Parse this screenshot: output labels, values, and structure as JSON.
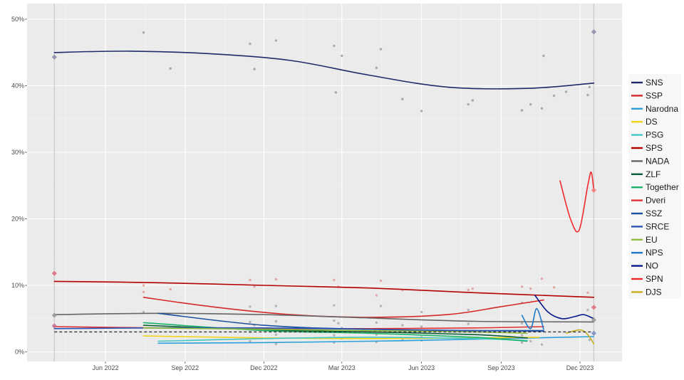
{
  "chart_data": {
    "type": "line",
    "title": "",
    "xlabel": "",
    "ylabel": "",
    "ylim": [
      0,
      50
    ],
    "xlim": [
      "2022-04-03",
      "2024-01-30"
    ],
    "grid": true,
    "legend_position": "right",
    "y_ticks": [
      0,
      10,
      20,
      30,
      40,
      50
    ],
    "y_tick_labels": [
      "0%",
      "10%",
      "20%",
      "30%",
      "40%",
      "50%"
    ],
    "x_ticks": [
      "2022-06-01",
      "2022-09-01",
      "2022-12-01",
      "2023-03-01",
      "2023-06-01",
      "2023-09-01",
      "2023-12-01"
    ],
    "x_tick_labels": [
      "Jun 2022",
      "Sep 2022",
      "Dec 2022",
      "Mar 2023",
      "Jun 2023",
      "Sep 2023",
      "Dec 2023"
    ],
    "election_dates": [
      "2022-04-03",
      "2023-12-17"
    ],
    "threshold": {
      "value": 3,
      "style": "dashed"
    },
    "series": [
      {
        "name": "SNS",
        "color": "#1f2a6b",
        "x": [
          "2022-04-03",
          "2022-07-01",
          "2022-10-01",
          "2023-01-01",
          "2023-04-01",
          "2023-07-01",
          "2023-10-01",
          "2023-12-17"
        ],
        "values": [
          45.0,
          45.2,
          44.8,
          43.8,
          41.6,
          39.8,
          39.6,
          40.4
        ]
      },
      {
        "name": "SSP",
        "color": "#d62828",
        "x": [
          "2022-07-15",
          "2022-10-01",
          "2023-01-01",
          "2023-04-01",
          "2023-07-01",
          "2023-09-01",
          "2023-10-20"
        ],
        "values": [
          8.2,
          6.8,
          5.6,
          5.2,
          5.6,
          6.8,
          7.8
        ]
      },
      {
        "name": "Narodna",
        "color": "#2b9fd9",
        "x": [
          "2022-08-01",
          "2022-12-01",
          "2023-04-01",
          "2023-08-01",
          "2023-12-17"
        ],
        "values": [
          1.3,
          1.4,
          1.6,
          1.9,
          2.3
        ]
      },
      {
        "name": "DS",
        "color": "#f2d41a",
        "x": [
          "2022-07-15",
          "2022-12-01",
          "2023-04-01",
          "2023-08-01",
          "2023-10-15"
        ],
        "values": [
          2.4,
          2.1,
          2.0,
          2.1,
          2.2
        ]
      },
      {
        "name": "PSG",
        "color": "#43c6c6",
        "x": [
          "2022-08-01",
          "2022-12-01",
          "2023-04-01",
          "2023-08-01",
          "2023-10-01"
        ],
        "values": [
          1.6,
          2.0,
          2.2,
          2.0,
          1.7
        ]
      },
      {
        "name": "SPS",
        "color": "#b30000",
        "x": [
          "2022-04-03",
          "2022-08-01",
          "2022-12-01",
          "2023-04-01",
          "2023-08-01",
          "2023-12-17"
        ],
        "values": [
          10.6,
          10.4,
          10.0,
          9.6,
          8.9,
          8.2
        ]
      },
      {
        "name": "NADA",
        "color": "#666666",
        "x": [
          "2022-04-03",
          "2022-08-01",
          "2022-12-01",
          "2023-04-01",
          "2023-08-01",
          "2023-12-17"
        ],
        "values": [
          5.6,
          5.8,
          5.6,
          5.1,
          4.6,
          4.5
        ]
      },
      {
        "name": "ZLF",
        "color": "#0b5e3a",
        "x": [
          "2022-07-15",
          "2022-12-01",
          "2023-04-01",
          "2023-08-01",
          "2023-10-01"
        ],
        "values": [
          4.0,
          3.3,
          3.0,
          2.6,
          2.1
        ]
      },
      {
        "name": "Together",
        "color": "#1db36a",
        "x": [
          "2022-07-15",
          "2022-12-01",
          "2023-04-01",
          "2023-08-01",
          "2023-10-01"
        ],
        "values": [
          4.4,
          3.2,
          2.8,
          2.2,
          1.6
        ]
      },
      {
        "name": "Dveri",
        "color": "#e03030",
        "x": [
          "2022-04-03",
          "2022-08-01",
          "2022-12-01",
          "2023-04-01",
          "2023-08-01",
          "2023-10-20"
        ],
        "values": [
          3.8,
          3.6,
          3.5,
          3.5,
          3.6,
          3.8
        ]
      },
      {
        "name": "SSZ",
        "color": "#1a4f9c",
        "x": [
          "2022-08-01",
          "2022-12-01",
          "2023-04-01",
          "2023-08-01",
          "2023-10-20"
        ],
        "values": [
          5.8,
          4.0,
          3.4,
          3.2,
          3.2
        ]
      },
      {
        "name": "SRCE",
        "color": "#2a55b8",
        "x": [
          "2022-04-03",
          "2022-08-01",
          "2022-12-01",
          "2023-04-01",
          "2023-08-01",
          "2023-10-20"
        ],
        "values": [
          3.5,
          3.6,
          3.6,
          3.4,
          3.2,
          3.1
        ]
      },
      {
        "name": "EU",
        "color": "#8fbf3a",
        "x": [
          "2022-07-15",
          "2022-12-01",
          "2023-04-01",
          "2023-08-01",
          "2023-10-01"
        ],
        "values": [
          3.6,
          3.4,
          3.2,
          3.0,
          2.8
        ]
      },
      {
        "name": "NPS",
        "color": "#1f78c8",
        "x": [
          "2023-09-25",
          "2023-10-05",
          "2023-10-12",
          "2023-10-20"
        ],
        "values": [
          5.5,
          3.5,
          6.5,
          3.4
        ]
      },
      {
        "name": "NO",
        "color": "#0a1a8c",
        "x": [
          "2023-10-10",
          "2023-10-25",
          "2023-11-10",
          "2023-11-25",
          "2023-12-05",
          "2023-12-17"
        ],
        "values": [
          8.5,
          6.0,
          5.0,
          5.3,
          5.6,
          5.0
        ]
      },
      {
        "name": "SPN",
        "color": "#f02a2a",
        "x": [
          "2023-11-08",
          "2023-11-20",
          "2023-11-30",
          "2023-12-10",
          "2023-12-14",
          "2023-12-17"
        ],
        "values": [
          25.7,
          20.0,
          18.3,
          25.0,
          27.0,
          24.3
        ]
      },
      {
        "name": "DJS",
        "color": "#c8b020",
        "x": [
          "2023-11-15",
          "2023-12-01",
          "2023-12-10",
          "2023-12-17"
        ],
        "values": [
          2.8,
          3.3,
          2.6,
          1.2
        ]
      }
    ],
    "poll_points": [
      {
        "x": "2022-07-15",
        "y": 48.0
      },
      {
        "x": "2022-08-15",
        "y": 42.6
      },
      {
        "x": "2022-11-15",
        "y": 46.3
      },
      {
        "x": "2022-11-20",
        "y": 42.5
      },
      {
        "x": "2022-12-15",
        "y": 46.8
      },
      {
        "x": "2023-02-20",
        "y": 46.0
      },
      {
        "x": "2023-02-22",
        "y": 39.0
      },
      {
        "x": "2023-03-01",
        "y": 44.5
      },
      {
        "x": "2023-04-10",
        "y": 42.7
      },
      {
        "x": "2023-04-15",
        "y": 45.5
      },
      {
        "x": "2023-05-10",
        "y": 38.0
      },
      {
        "x": "2023-06-01",
        "y": 36.2
      },
      {
        "x": "2023-07-25",
        "y": 37.2
      },
      {
        "x": "2023-07-30",
        "y": 37.8
      },
      {
        "x": "2023-09-25",
        "y": 36.3
      },
      {
        "x": "2023-10-05",
        "y": 37.2
      },
      {
        "x": "2023-10-18",
        "y": 36.6
      },
      {
        "x": "2023-10-20",
        "y": 44.5
      },
      {
        "x": "2023-11-01",
        "y": 38.5
      },
      {
        "x": "2023-11-15",
        "y": 39.1
      },
      {
        "x": "2023-12-10",
        "y": 38.6
      },
      {
        "x": "2023-12-12",
        "y": 39.8
      },
      {
        "x": "2022-07-15",
        "y": 10.0
      },
      {
        "x": "2022-07-15",
        "y": 9.0
      },
      {
        "x": "2022-08-15",
        "y": 9.4
      },
      {
        "x": "2022-11-15",
        "y": 10.8
      },
      {
        "x": "2022-11-20",
        "y": 9.8
      },
      {
        "x": "2022-12-15",
        "y": 10.9
      },
      {
        "x": "2023-02-20",
        "y": 10.8
      },
      {
        "x": "2023-02-25",
        "y": 9.8
      },
      {
        "x": "2023-04-10",
        "y": 8.5
      },
      {
        "x": "2023-04-15",
        "y": 10.7
      },
      {
        "x": "2023-05-10",
        "y": 9.3
      },
      {
        "x": "2023-07-25",
        "y": 9.3
      },
      {
        "x": "2023-07-30",
        "y": 9.5
      },
      {
        "x": "2023-09-25",
        "y": 9.8
      },
      {
        "x": "2023-10-05",
        "y": 9.5
      },
      {
        "x": "2023-10-18",
        "y": 11.0
      },
      {
        "x": "2023-11-01",
        "y": 9.7
      },
      {
        "x": "2023-12-10",
        "y": 8.9
      },
      {
        "x": "2022-07-15",
        "y": 6.0
      },
      {
        "x": "2022-11-15",
        "y": 6.8
      },
      {
        "x": "2022-12-15",
        "y": 6.9
      },
      {
        "x": "2023-02-20",
        "y": 7.0
      },
      {
        "x": "2023-04-15",
        "y": 6.9
      },
      {
        "x": "2023-06-01",
        "y": 6.0
      },
      {
        "x": "2023-07-25",
        "y": 6.3
      },
      {
        "x": "2023-09-25",
        "y": 7.4
      },
      {
        "x": "2023-12-10",
        "y": 6.3
      },
      {
        "x": "2022-11-15",
        "y": 4.5
      },
      {
        "x": "2022-11-20",
        "y": 4.0
      },
      {
        "x": "2022-12-15",
        "y": 4.6
      },
      {
        "x": "2023-02-20",
        "y": 4.7
      },
      {
        "x": "2023-02-25",
        "y": 4.3
      },
      {
        "x": "2023-03-01",
        "y": 3.6
      },
      {
        "x": "2023-04-10",
        "y": 4.4
      },
      {
        "x": "2023-05-10",
        "y": 4.0
      },
      {
        "x": "2023-06-01",
        "y": 3.8
      },
      {
        "x": "2023-07-25",
        "y": 4.2
      },
      {
        "x": "2023-09-25",
        "y": 4.3
      },
      {
        "x": "2023-10-18",
        "y": 4.6
      },
      {
        "x": "2022-11-15",
        "y": 3.0
      },
      {
        "x": "2022-12-15",
        "y": 2.6
      },
      {
        "x": "2023-02-20",
        "y": 2.5
      },
      {
        "x": "2023-03-01",
        "y": 2.0
      },
      {
        "x": "2023-04-10",
        "y": 2.6
      },
      {
        "x": "2023-05-10",
        "y": 1.8
      },
      {
        "x": "2023-06-01",
        "y": 2.2
      },
      {
        "x": "2023-07-25",
        "y": 2.0
      },
      {
        "x": "2023-09-25",
        "y": 2.5
      },
      {
        "x": "2023-10-05",
        "y": 1.6
      },
      {
        "x": "2022-11-15",
        "y": 1.6
      },
      {
        "x": "2022-12-15",
        "y": 1.2
      },
      {
        "x": "2023-02-20",
        "y": 1.4
      },
      {
        "x": "2023-04-10",
        "y": 1.5
      },
      {
        "x": "2023-06-01",
        "y": 1.7
      },
      {
        "x": "2023-09-25",
        "y": 1.4
      },
      {
        "x": "2023-10-18",
        "y": 1.1
      },
      {
        "x": "2023-12-12",
        "y": 1.8
      }
    ],
    "election_results": [
      {
        "x": "2022-04-03",
        "y": 44.3,
        "color": "#8e8ea8"
      },
      {
        "x": "2022-04-03",
        "y": 11.8,
        "color": "#e07080"
      },
      {
        "x": "2022-04-03",
        "y": 5.5,
        "color": "#9a9a9a"
      },
      {
        "x": "2022-04-03",
        "y": 3.9,
        "color": "#c07090"
      },
      {
        "x": "2023-12-17",
        "y": 48.1,
        "color": "#8e8ea8"
      },
      {
        "x": "2023-12-17",
        "y": 24.3,
        "color": "#f08080"
      },
      {
        "x": "2023-12-17",
        "y": 6.7,
        "color": "#e07080"
      },
      {
        "x": "2023-12-17",
        "y": 4.8,
        "color": "#9a9a9a"
      },
      {
        "x": "2023-12-17",
        "y": 2.8,
        "color": "#8090c0"
      }
    ]
  }
}
